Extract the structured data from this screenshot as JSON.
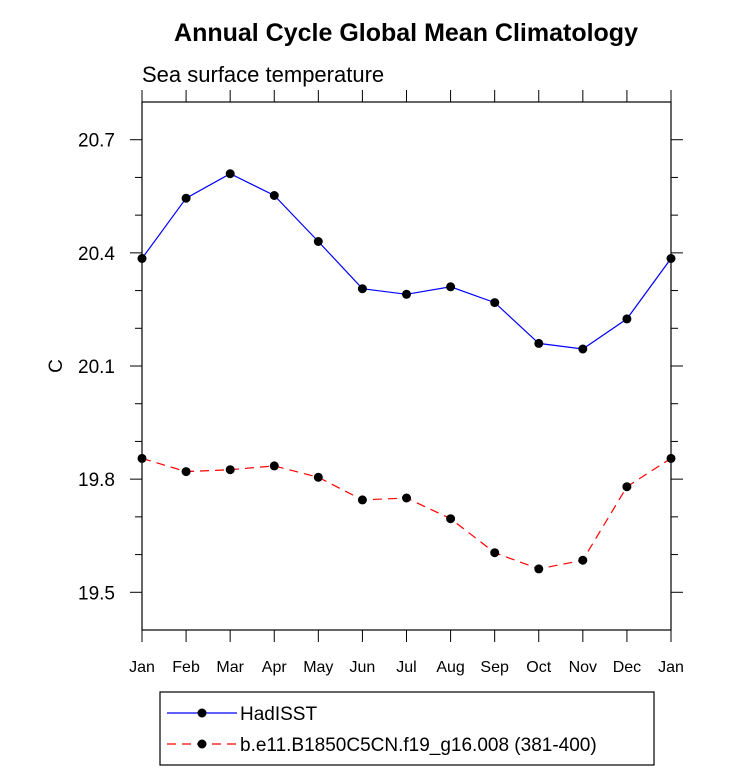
{
  "chart_data": {
    "type": "line",
    "title": "Annual Cycle Global Mean Climatology",
    "subtitle": "Sea surface temperature",
    "ylabel": "C",
    "xlabel": "",
    "categories": [
      "Jan",
      "Feb",
      "Mar",
      "Apr",
      "May",
      "Jun",
      "Jul",
      "Aug",
      "Sep",
      "Oct",
      "Nov",
      "Dec",
      "Jan"
    ],
    "ylim": [
      19.4,
      20.8
    ],
    "yticks": [
      19.5,
      19.8,
      20.1,
      20.4,
      20.7
    ],
    "ytick_labels": [
      "19.5",
      "19.8",
      "20.1",
      "20.4",
      "20.7"
    ],
    "yminor_step": 0.1,
    "legend_position": "bottom",
    "series": [
      {
        "name": "HadISST",
        "color": "#0000ff",
        "dash": "solid",
        "values": [
          20.385,
          20.545,
          20.61,
          20.552,
          20.43,
          20.305,
          20.29,
          20.31,
          20.268,
          20.16,
          20.145,
          20.225,
          20.385
        ]
      },
      {
        "name": "b.e11.B1850C5CN.f19_g16.008 (381-400)",
        "color": "#ff0000",
        "dash": "dashed",
        "values": [
          19.855,
          19.82,
          19.825,
          19.835,
          19.805,
          19.745,
          19.75,
          19.695,
          19.605,
          19.562,
          19.585,
          19.78,
          19.855
        ]
      }
    ]
  }
}
